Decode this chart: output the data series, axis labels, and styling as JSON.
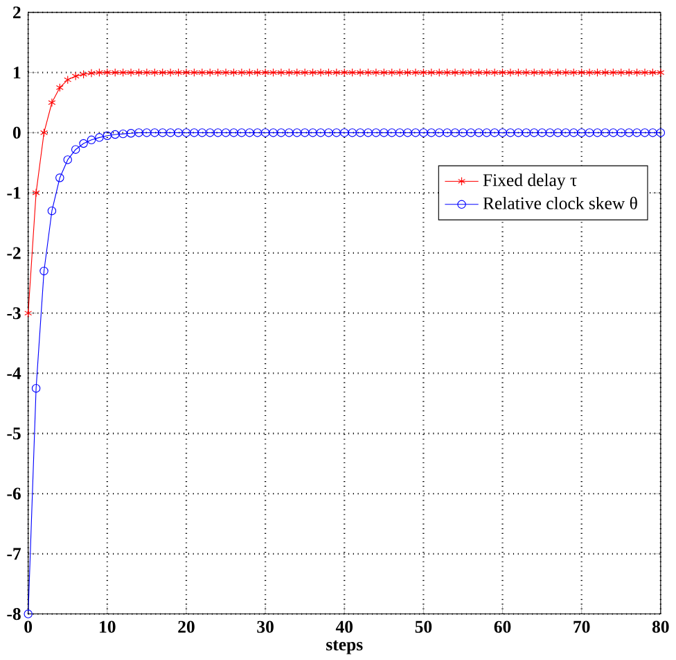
{
  "chart_data": {
    "type": "line",
    "xlabel": "steps",
    "x": [
      0,
      1,
      2,
      3,
      4,
      5,
      6,
      7,
      8,
      9,
      10,
      11,
      12,
      13,
      14,
      15,
      16,
      17,
      18,
      19,
      20,
      21,
      22,
      23,
      24,
      25,
      26,
      27,
      28,
      29,
      30,
      31,
      32,
      33,
      34,
      35,
      36,
      37,
      38,
      39,
      40,
      41,
      42,
      43,
      44,
      45,
      46,
      47,
      48,
      49,
      50,
      51,
      52,
      53,
      54,
      55,
      56,
      57,
      58,
      59,
      60,
      61,
      62,
      63,
      64,
      65,
      66,
      67,
      68,
      69,
      70,
      71,
      72,
      73,
      74,
      75,
      76,
      77,
      78,
      79,
      80
    ],
    "series": [
      {
        "name": "Fixed delay τ",
        "color": "#ff0000",
        "marker": "cross",
        "values": [
          -3,
          -1,
          0,
          0.5,
          0.75,
          0.88,
          0.94,
          0.97,
          0.99,
          1,
          1,
          1,
          1,
          1,
          1,
          1,
          1,
          1,
          1,
          1,
          1,
          1,
          1,
          1,
          1,
          1,
          1,
          1,
          1,
          1,
          1,
          1,
          1,
          1,
          1,
          1,
          1,
          1,
          1,
          1,
          1,
          1,
          1,
          1,
          1,
          1,
          1,
          1,
          1,
          1,
          1,
          1,
          1,
          1,
          1,
          1,
          1,
          1,
          1,
          1,
          1,
          1,
          1,
          1,
          1,
          1,
          1,
          1,
          1,
          1,
          1,
          1,
          1,
          1,
          1,
          1,
          1,
          1,
          1,
          1,
          1
        ]
      },
      {
        "name": "Relative clock skew θ",
        "color": "#0000ff",
        "marker": "circle",
        "values": [
          -8,
          -4.25,
          -2.3,
          -1.3,
          -0.75,
          -0.45,
          -0.28,
          -0.18,
          -0.12,
          -0.08,
          -0.05,
          -0.03,
          -0.02,
          -0.01,
          0,
          0,
          0,
          0,
          0,
          0,
          0,
          0,
          0,
          0,
          0,
          0,
          0,
          0,
          0,
          0,
          0,
          0,
          0,
          0,
          0,
          0,
          0,
          0,
          0,
          0,
          0,
          0,
          0,
          0,
          0,
          0,
          0,
          0,
          0,
          0,
          0,
          0,
          0,
          0,
          0,
          0,
          0,
          0,
          0,
          0,
          0,
          0,
          0,
          0,
          0,
          0,
          0,
          0,
          0,
          0,
          0,
          0,
          0,
          0,
          0,
          0,
          0,
          0,
          0,
          0,
          0
        ]
      }
    ],
    "xlim": [
      0,
      80
    ],
    "xticks": [
      0,
      10,
      20,
      30,
      40,
      50,
      60,
      70,
      80
    ],
    "ylim": [
      -8,
      2
    ],
    "yticks": [
      -8,
      -7,
      -6,
      -5,
      -4,
      -3,
      -2,
      -1,
      0,
      1,
      2
    ],
    "grid": true,
    "legend": "right",
    "line_style": "solid"
  }
}
